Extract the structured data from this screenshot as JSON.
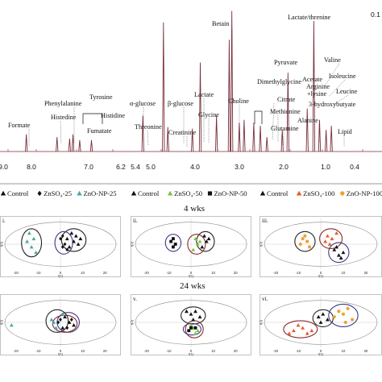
{
  "chart_data": [
    {
      "type": "line",
      "description": "1H NMR spectrum",
      "xlabel": "",
      "x_ticks": [
        "9.0",
        "8.0",
        "7.0",
        "6.2",
        "5.4",
        "5.0",
        "4.0",
        "3.0",
        "2.0",
        "1.0",
        "0.4"
      ],
      "right_tick": "0.1",
      "line_color": "#7a2e3a",
      "peaks": [
        {
          "ppm": 8.45,
          "height": 0.12
        },
        {
          "ppm": 7.72,
          "height": 0.1
        },
        {
          "ppm": 7.42,
          "height": 0.09
        },
        {
          "ppm": 7.34,
          "height": 0.12
        },
        {
          "ppm": 7.18,
          "height": 0.08
        },
        {
          "ppm": 6.9,
          "height": 0.08
        },
        {
          "ppm": 5.23,
          "height": 0.25
        },
        {
          "ppm": 4.66,
          "height": 0.17
        },
        {
          "ppm": 4.76,
          "height": 0.9
        },
        {
          "ppm": 4.1,
          "height": 0.16
        },
        {
          "ppm": 3.92,
          "height": 0.62
        },
        {
          "ppm": 3.55,
          "height": 0.25
        },
        {
          "ppm": 3.26,
          "height": 0.78
        },
        {
          "ppm": 3.2,
          "height": 0.98
        },
        {
          "ppm": 3.03,
          "height": 0.2
        },
        {
          "ppm": 2.92,
          "height": 0.22
        },
        {
          "ppm": 2.7,
          "height": 0.2
        },
        {
          "ppm": 2.55,
          "height": 0.18
        },
        {
          "ppm": 2.4,
          "height": 0.1
        },
        {
          "ppm": 2.05,
          "height": 0.15
        },
        {
          "ppm": 1.92,
          "height": 0.55
        },
        {
          "ppm": 1.48,
          "height": 0.3
        },
        {
          "ppm": 1.33,
          "height": 0.91
        },
        {
          "ppm": 1.2,
          "height": 0.22
        },
        {
          "ppm": 1.05,
          "height": 0.15
        },
        {
          "ppm": 0.93,
          "height": 0.18
        }
      ],
      "annotations": [
        "Formate",
        "Phenylalanine",
        "Histedine",
        "Tyrosine",
        "Histidine",
        "Fumatate",
        "α-glucose",
        "Threonine",
        "β-glucose",
        "Creatinine",
        "Lactate",
        "Glycine",
        "Betain",
        "Choline",
        "Dimethylglycine",
        "Pyruvate",
        "Citrate",
        "Methionine",
        "Glutamine",
        "Acetate",
        "Arginine",
        "+lysine",
        "Alanine",
        "Lactate/threnine",
        "Valine",
        "Isoleucine",
        "Leucine",
        "3-hydroxybutyate",
        "Lipid"
      ]
    },
    {
      "type": "scatter",
      "panel": "i.",
      "period": "4 wks",
      "legend": [
        "Control",
        "ZnSO₄-25",
        "ZnO-NP-25"
      ],
      "x_ticks": [
        "-20",
        "-10",
        "0",
        "10",
        "20"
      ],
      "series": [
        {
          "name": "Control",
          "marker": "triangle",
          "color": "#111111",
          "points": [
            [
              3,
              2
            ],
            [
              5,
              4
            ],
            [
              7,
              3
            ],
            [
              6,
              1
            ],
            [
              8,
              0
            ],
            [
              4,
              -1
            ],
            [
              9,
              2
            ]
          ]
        },
        {
          "name": "ZnSO₄-25",
          "marker": "diamond",
          "color": "#111111",
          "points": [
            [
              1,
              3
            ],
            [
              2,
              0
            ],
            [
              0,
              2
            ],
            [
              3,
              -2
            ],
            [
              1,
              -1
            ]
          ]
        },
        {
          "name": "ZnO-NP-25",
          "marker": "triangle",
          "color": "#4aa8a0",
          "points": [
            [
              -14,
              4
            ],
            [
              -12,
              2
            ],
            [
              -13,
              -1
            ],
            [
              -11,
              -3
            ],
            [
              -15,
              1
            ]
          ]
        }
      ]
    },
    {
      "type": "scatter",
      "panel": "ii.",
      "period": "4 wks",
      "legend": [
        "Control",
        "ZnSO₄-50",
        "ZnO-NP-50"
      ],
      "x_ticks": [
        "-20",
        "-10",
        "0",
        "10",
        "20"
      ],
      "series": [
        {
          "name": "Control",
          "marker": "triangle",
          "color": "#111111",
          "points": [
            [
              6,
              3
            ],
            [
              7,
              1
            ],
            [
              5,
              -1
            ],
            [
              8,
              2
            ]
          ]
        },
        {
          "name": "ZnSO₄-50",
          "marker": "triangle",
          "color": "#7dc242",
          "points": [
            [
              2,
              2
            ],
            [
              3,
              0
            ],
            [
              1,
              -2
            ],
            [
              4,
              1
            ]
          ]
        },
        {
          "name": "ZnO-NP-50",
          "marker": "square",
          "color": "#111111",
          "points": [
            [
              -8,
              2
            ],
            [
              -7,
              0
            ],
            [
              -9,
              1
            ],
            [
              -8,
              -1
            ]
          ]
        }
      ]
    },
    {
      "type": "scatter",
      "panel": "iii.",
      "period": "4 wks",
      "legend": [
        "Control",
        "ZnSO₄-100",
        "ZnO-NP-100"
      ],
      "x_ticks": [
        "-20",
        "-10",
        "0",
        "10",
        "20"
      ],
      "series": [
        {
          "name": "Control",
          "marker": "triangle",
          "color": "#111111",
          "points": [
            [
              6,
              -2
            ],
            [
              8,
              -4
            ],
            [
              10,
              -3
            ],
            [
              7,
              -1
            ],
            [
              9,
              -5
            ]
          ]
        },
        {
          "name": "ZnSO₄-100",
          "marker": "triangle",
          "color": "#e35a2c",
          "points": [
            [
              3,
              3
            ],
            [
              5,
              2
            ],
            [
              7,
              4
            ],
            [
              2,
              1
            ],
            [
              4,
              0
            ]
          ]
        },
        {
          "name": "ZnO-NP-100",
          "marker": "circle",
          "color": "#f0a030",
          "points": [
            [
              -8,
              2
            ],
            [
              -6,
              1
            ],
            [
              -9,
              0
            ],
            [
              -7,
              3
            ],
            [
              -5,
              -1
            ]
          ]
        }
      ]
    },
    {
      "type": "scatter",
      "panel": "",
      "period": "24 wks",
      "legend": [
        "Control",
        "ZnSO₄-25",
        "ZnO-NP-25"
      ],
      "x_ticks": [
        "-20",
        "-10",
        "0",
        "10",
        "20"
      ],
      "series": [
        {
          "name": "Control",
          "marker": "triangle",
          "color": "#111111",
          "points": [
            [
              2,
              2
            ],
            [
              4,
              0
            ],
            [
              6,
              -1
            ],
            [
              1,
              -2
            ]
          ]
        },
        {
          "name": "ZnSO₄-25",
          "marker": "diamond",
          "color": "#111111",
          "points": [
            [
              0,
              1
            ],
            [
              3,
              -2
            ],
            [
              -1,
              0
            ],
            [
              5,
              1
            ]
          ]
        },
        {
          "name": "ZnO-NP-25",
          "marker": "triangle",
          "color": "#4aa8a0",
          "points": [
            [
              -3,
              0
            ],
            [
              -2,
              -2
            ],
            [
              1,
              3
            ],
            [
              -4,
              1
            ],
            [
              -22,
              -1
            ]
          ]
        }
      ]
    },
    {
      "type": "scatter",
      "panel": "v.",
      "period": "24 wks",
      "legend": [
        "Control",
        "ZnSO₄-50",
        "ZnO-NP-50"
      ],
      "x_ticks": [
        "-20",
        "-10",
        "0",
        "10",
        "20"
      ],
      "series": [
        {
          "name": "Control",
          "marker": "triangle",
          "color": "#111111",
          "points": [
            [
              -2,
              4
            ],
            [
              0,
              3
            ],
            [
              2,
              4
            ],
            [
              4,
              2
            ],
            [
              1,
              1
            ]
          ]
        },
        {
          "name": "ZnSO₄-50",
          "marker": "triangle",
          "color": "#7dc242",
          "points": [
            [
              1,
              -2
            ],
            [
              3,
              -3
            ],
            [
              0,
              -1
            ],
            [
              2,
              -4
            ]
          ]
        },
        {
          "name": "ZnO-NP-50",
          "marker": "square",
          "color": "#111111",
          "points": [
            [
              0,
              -2
            ],
            [
              -1,
              -3
            ],
            [
              2,
              -2
            ]
          ]
        }
      ]
    },
    {
      "type": "scatter",
      "panel": "vi.",
      "period": "24 wks",
      "legend": [
        "Control",
        "ZnSO₄-100",
        "ZnO-NP-100"
      ],
      "x_ticks": [
        "-20",
        "-10",
        "0",
        "10",
        "20"
      ],
      "series": [
        {
          "name": "Control",
          "marker": "triangle",
          "color": "#111111",
          "points": [
            [
              -1,
              2
            ],
            [
              1,
              3
            ],
            [
              3,
              1
            ],
            [
              0,
              0
            ]
          ]
        },
        {
          "name": "ZnSO₄-100",
          "marker": "triangle",
          "color": "#e35a2c",
          "points": [
            [
              -12,
              -3
            ],
            [
              -8,
              -2
            ],
            [
              -4,
              -3
            ],
            [
              -10,
              -1
            ],
            [
              -6,
              -4
            ],
            [
              -14,
              -4
            ]
          ]
        },
        {
          "name": "ZnO-NP-100",
          "marker": "circle",
          "color": "#f0a030",
          "points": [
            [
              8,
              4
            ],
            [
              10,
              3
            ],
            [
              12,
              5
            ],
            [
              6,
              2
            ],
            [
              14,
              1
            ],
            [
              11,
              0
            ]
          ]
        }
      ]
    }
  ],
  "weeks": {
    "top": "4 wks",
    "bottom": "24 wks"
  },
  "axis_labels": {
    "x": "t[1]",
    "y": "t[2]"
  },
  "legends": [
    [
      "Control",
      "ZnSO₄-25",
      "ZnO-NP-25"
    ],
    [
      "Control",
      "ZnSO₄-50",
      "ZnO-NP-50"
    ],
    [
      "Control",
      "ZnSO₄-100",
      "ZnO-NP-100"
    ]
  ]
}
